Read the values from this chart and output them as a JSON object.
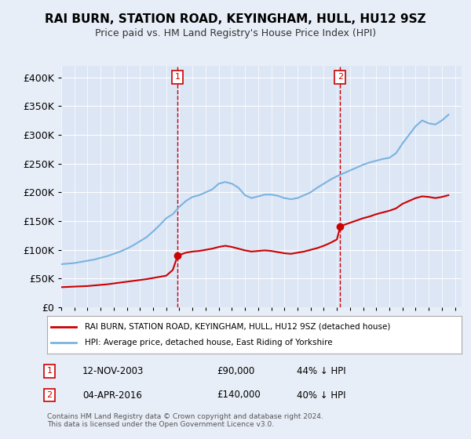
{
  "title": "RAI BURN, STATION ROAD, KEYINGHAM, HULL, HU12 9SZ",
  "subtitle": "Price paid vs. HM Land Registry's House Price Index (HPI)",
  "background_color": "#e8eef7",
  "plot_bg_color": "#dce6f5",
  "legend_label_red": "RAI BURN, STATION ROAD, KEYINGHAM, HULL, HU12 9SZ (detached house)",
  "legend_label_blue": "HPI: Average price, detached house, East Riding of Yorkshire",
  "footer": "Contains HM Land Registry data © Crown copyright and database right 2024.\nThis data is licensed under the Open Government Licence v3.0.",
  "sale1_date": "12-NOV-2003",
  "sale1_price": 90000,
  "sale1_label": "1",
  "sale1_hpi": "44% ↓ HPI",
  "sale2_date": "04-APR-2016",
  "sale2_price": 140000,
  "sale2_label": "2",
  "sale2_hpi": "40% ↓ HPI",
  "ylim": [
    0,
    420000
  ],
  "yticks": [
    0,
    50000,
    100000,
    150000,
    200000,
    250000,
    300000,
    350000,
    400000
  ],
  "xlim_start": 1995.0,
  "xlim_end": 2025.5,
  "sale1_x": 2003.87,
  "sale2_x": 2016.25,
  "hpi_years": [
    1995,
    1995.5,
    1996,
    1996.5,
    1997,
    1997.5,
    1998,
    1998.5,
    1999,
    1999.5,
    2000,
    2000.5,
    2001,
    2001.5,
    2002,
    2002.5,
    2003,
    2003.5,
    2004,
    2004.5,
    2005,
    2005.5,
    2006,
    2006.5,
    2007,
    2007.5,
    2008,
    2008.5,
    2009,
    2009.5,
    2010,
    2010.5,
    2011,
    2011.5,
    2012,
    2012.5,
    2013,
    2013.5,
    2014,
    2014.5,
    2015,
    2015.5,
    2016,
    2016.5,
    2017,
    2017.5,
    2018,
    2018.5,
    2019,
    2019.5,
    2020,
    2020.5,
    2021,
    2021.5,
    2022,
    2022.5,
    2023,
    2023.5,
    2024,
    2024.5
  ],
  "hpi_values": [
    75000,
    76000,
    77000,
    79000,
    81000,
    83000,
    86000,
    89000,
    93000,
    97000,
    102000,
    108000,
    115000,
    122000,
    132000,
    143000,
    155000,
    162000,
    175000,
    185000,
    192000,
    195000,
    200000,
    205000,
    215000,
    218000,
    215000,
    208000,
    195000,
    190000,
    193000,
    196000,
    196000,
    194000,
    190000,
    188000,
    190000,
    195000,
    200000,
    208000,
    215000,
    222000,
    228000,
    233000,
    238000,
    243000,
    248000,
    252000,
    255000,
    258000,
    260000,
    268000,
    285000,
    300000,
    315000,
    325000,
    320000,
    318000,
    325000,
    335000
  ],
  "red_years": [
    1995,
    1995.5,
    1996,
    1996.5,
    1997,
    1997.5,
    1998,
    1998.5,
    1999,
    1999.5,
    2000,
    2000.5,
    2001,
    2001.5,
    2002,
    2002.5,
    2003,
    2003.5,
    2003.87,
    2003.87,
    2004.5,
    2005,
    2005.5,
    2006,
    2006.5,
    2007,
    2007.5,
    2008,
    2008.5,
    2009,
    2009.5,
    2010,
    2010.5,
    2011,
    2011.5,
    2012,
    2012.5,
    2013,
    2013.5,
    2014,
    2014.5,
    2015,
    2015.5,
    2016,
    2016.25,
    2016.25,
    2016.5,
    2017,
    2017.5,
    2018,
    2018.5,
    2019,
    2019.5,
    2020,
    2020.5,
    2021,
    2021.5,
    2022,
    2022.5,
    2023,
    2023.5,
    2024,
    2024.5
  ],
  "red_values": [
    35000,
    35500,
    36000,
    36500,
    37000,
    38000,
    39000,
    40000,
    41500,
    43000,
    44500,
    46000,
    47500,
    49000,
    51000,
    53000,
    55000,
    65000,
    90000,
    90000,
    95000,
    97000,
    98000,
    100000,
    102000,
    105000,
    107000,
    105000,
    102000,
    99000,
    97000,
    98000,
    99000,
    98000,
    96000,
    94000,
    93000,
    95000,
    97000,
    100000,
    103000,
    107000,
    112000,
    118000,
    140000,
    140000,
    143000,
    147000,
    151000,
    155000,
    158000,
    162000,
    165000,
    168000,
    172000,
    180000,
    185000,
    190000,
    193000,
    192000,
    190000,
    192000,
    195000
  ]
}
